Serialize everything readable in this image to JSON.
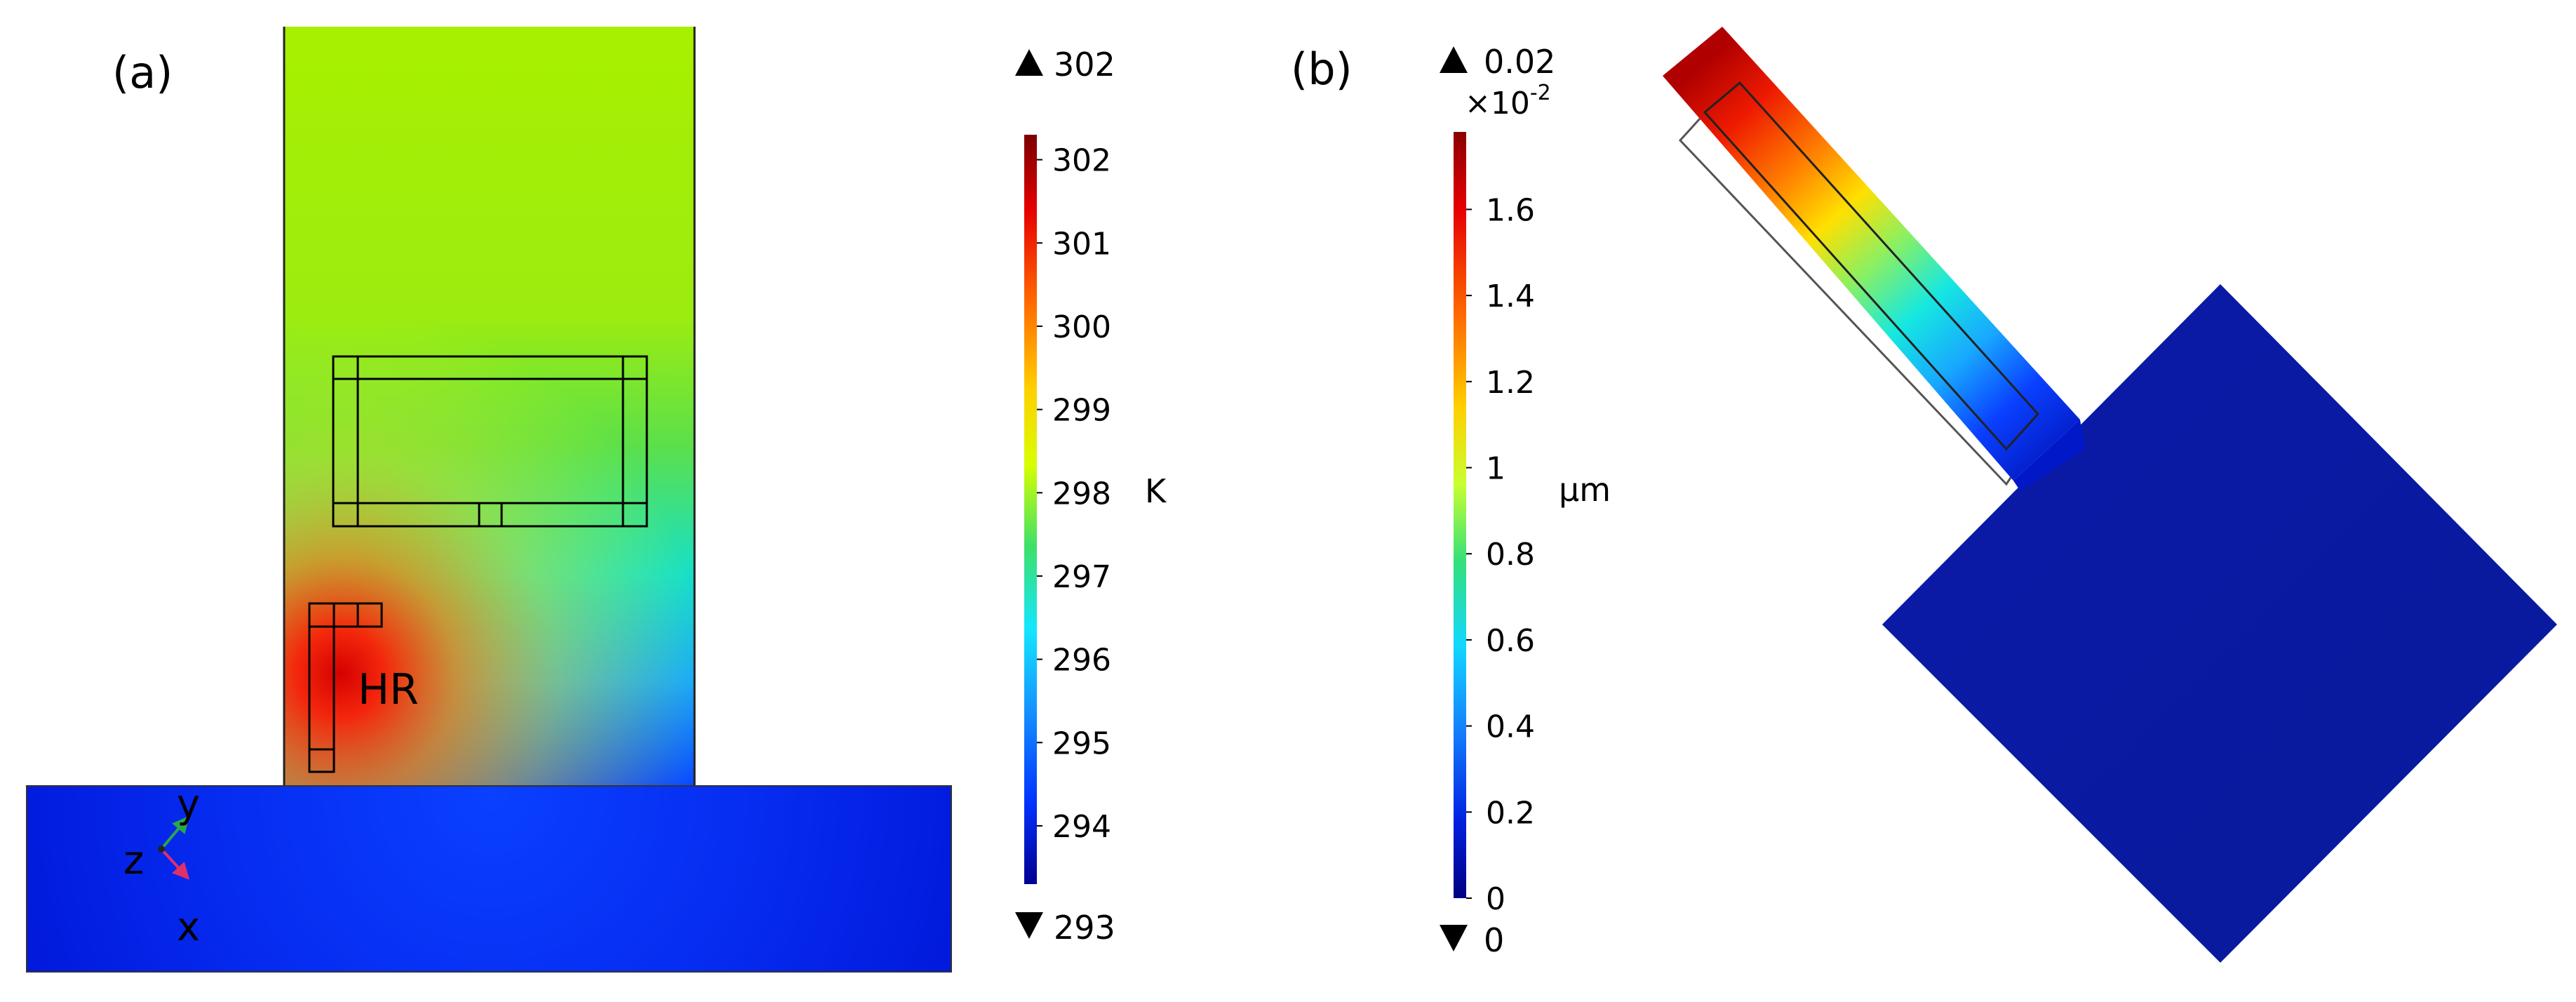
{
  "panel_a": {
    "label": "(a)",
    "region_label": "HR",
    "axis_triad": {
      "y": "y",
      "z": "z",
      "x": "x"
    },
    "colorbar": {
      "max_marker": "302",
      "min_marker": "293",
      "unit": "K",
      "ticks": [
        "302",
        "301",
        "300",
        "299",
        "298",
        "297",
        "296",
        "295",
        "294"
      ],
      "range": [
        293.3,
        302.3
      ],
      "colormap": [
        "#7a0000",
        "#e60000",
        "#ff6600",
        "#ffd000",
        "#d7ff00",
        "#3de06a",
        "#14e6ff",
        "#1490ff",
        "#0033ff",
        "#000090"
      ]
    }
  },
  "panel_b": {
    "label": "(b)",
    "colorbar": {
      "max_marker": "0.02",
      "multiplier": "×10",
      "multiplier_exp": "-2",
      "min_marker": "0",
      "unit": "μm",
      "ticks": [
        "1.6",
        "1.4",
        "1.2",
        "1",
        "0.8",
        "0.6",
        "0.4",
        "0.2",
        "0"
      ],
      "range": [
        0,
        1.78
      ],
      "colormap": [
        "#8b0000",
        "#e60000",
        "#ff6a00",
        "#ffd000",
        "#c8ff30",
        "#34e07a",
        "#12d8ff",
        "#1480ff",
        "#0020e0",
        "#000080"
      ]
    }
  }
}
